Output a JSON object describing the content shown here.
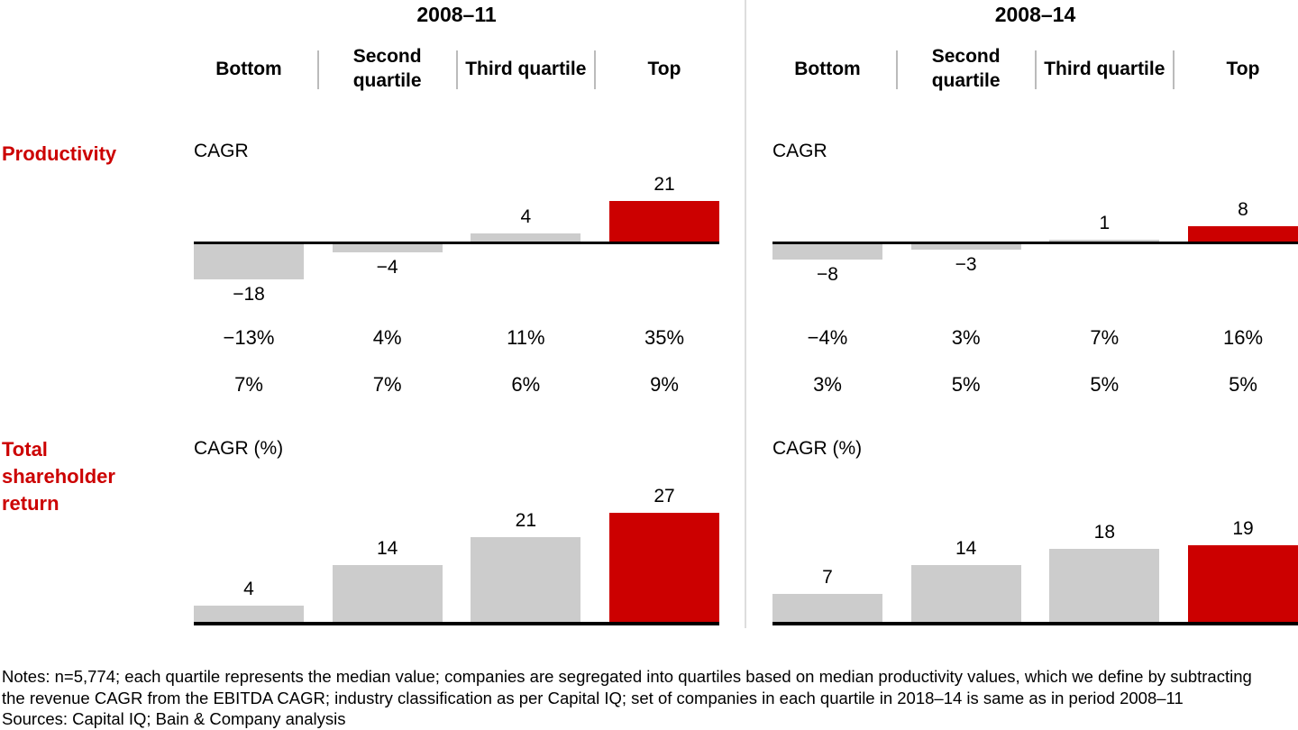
{
  "colors": {
    "accent_red": "#CC0000",
    "bar_gray": "#CCCCCC",
    "baseline_black": "#000000",
    "header_separator_gray": "#BBBBBB",
    "panel_divider_gray": "#DDDDDD"
  },
  "header": {
    "periods": [
      {
        "title": "2008–11",
        "columns": [
          "Bottom",
          "Second quartile",
          "Third quartile",
          "Top"
        ]
      },
      {
        "title": "2008–14",
        "columns": [
          "Bottom",
          "Second quartile",
          "Third quartile",
          "Top"
        ]
      }
    ]
  },
  "chart_data": [
    {
      "type": "bar",
      "row_label": "Productivity",
      "axis_label": "CAGR",
      "categories": [
        "Bottom",
        "Second quartile",
        "Third quartile",
        "Top"
      ],
      "highlight_index": 3,
      "legend": "none",
      "grid": "off",
      "panels": [
        {
          "period": "2008–11",
          "values": [
            -18,
            -4,
            4,
            21
          ],
          "value_labels": [
            "−18",
            "−4",
            "4",
            "21"
          ],
          "percent_row_1": [
            "−13%",
            "4%",
            "11%",
            "35%"
          ],
          "percent_row_2": [
            "7%",
            "7%",
            "6%",
            "9%"
          ]
        },
        {
          "period": "2008–14",
          "values": [
            -8,
            -3,
            1,
            8
          ],
          "value_labels": [
            "−8",
            "−3",
            "1",
            "8"
          ],
          "percent_row_1": [
            "−4%",
            "3%",
            "7%",
            "16%"
          ],
          "percent_row_2": [
            "3%",
            "5%",
            "5%",
            "5%"
          ]
        }
      ]
    },
    {
      "type": "bar",
      "row_label": "Total shareholder return",
      "axis_label": "CAGR (%)",
      "categories": [
        "Bottom",
        "Second quartile",
        "Third quartile",
        "Top"
      ],
      "highlight_index": 3,
      "legend": "none",
      "grid": "off",
      "panels": [
        {
          "period": "2008–11",
          "values": [
            4,
            14,
            21,
            27
          ],
          "value_labels": [
            "4",
            "14",
            "21",
            "27"
          ]
        },
        {
          "period": "2008–14",
          "values": [
            7,
            14,
            18,
            19
          ],
          "value_labels": [
            "7",
            "14",
            "18",
            "19"
          ]
        }
      ]
    }
  ],
  "footnotes": {
    "lines": [
      "Notes: n=5,774; each quartile represents the median value; companies are segregated into quartiles based on median productivity values, which we define by subtracting",
      "the revenue CAGR from the EBITDA CAGR; industry classification as per Capital IQ; set of companies in each quartile in 2018–14 is same as in period 2008–11",
      "Sources: Capital IQ; Bain & Company analysis"
    ]
  }
}
